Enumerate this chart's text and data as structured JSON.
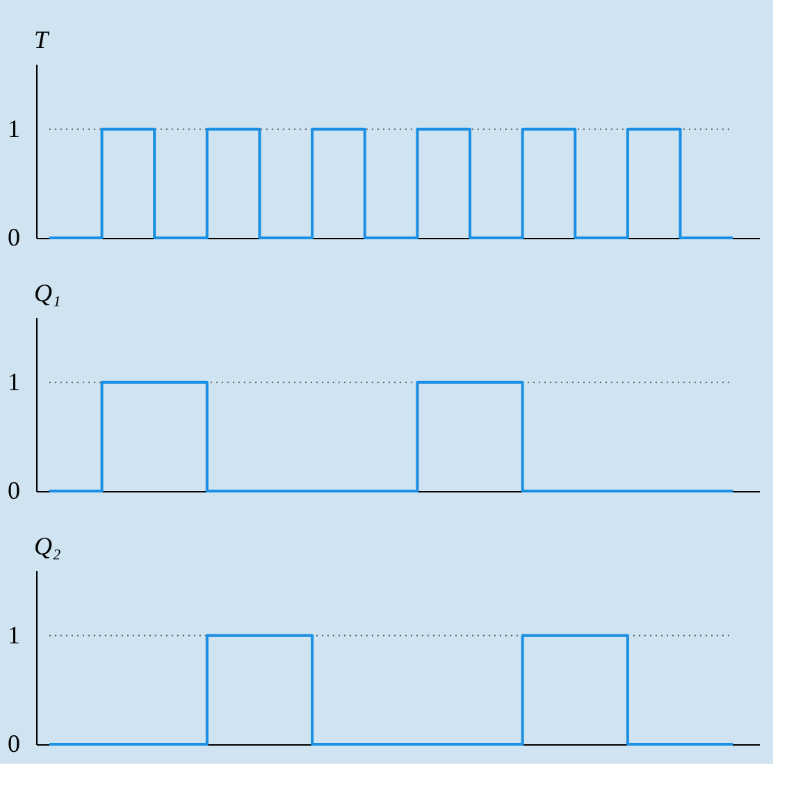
{
  "chart_data": [
    {
      "type": "step",
      "ylabel": "T",
      "categories": [
        null,
        null,
        null,
        null,
        null,
        null,
        null,
        null,
        null,
        null,
        null,
        null,
        null,
        null
      ],
      "tick_labels": "y",
      "ylim": [
        0,
        1.6
      ],
      "yticks": [
        0,
        1
      ],
      "series": [
        {
          "color": "#1a8fe3",
          "values": [
            0,
            1,
            0,
            1,
            0,
            1,
            0,
            1,
            0,
            1,
            0,
            1,
            0,
            0
          ]
        }
      ],
      "ref_lines": [
        {
          "axis": "y",
          "value": 1,
          "line_style": "dotted",
          "color": "#555555"
        }
      ]
    },
    {
      "type": "step",
      "ylabel": "Q₁",
      "categories": [
        null,
        null,
        null,
        null,
        null,
        null,
        null,
        null,
        null,
        null,
        null,
        null,
        null,
        null
      ],
      "tick_labels": "y",
      "ylim": [
        0,
        1.6
      ],
      "yticks": [
        0,
        1
      ],
      "series": [
        {
          "color": "#1a8fe3",
          "values": [
            0,
            1,
            1,
            0,
            0,
            0,
            0,
            1,
            1,
            0,
            0,
            0,
            0,
            0
          ]
        }
      ],
      "ref_lines": [
        {
          "axis": "y",
          "value": 1,
          "line_style": "dotted",
          "color": "#555555"
        }
      ]
    },
    {
      "type": "step",
      "ylabel": "Q₂",
      "categories": [
        null,
        null,
        null,
        null,
        null,
        null,
        null,
        null,
        null,
        null,
        null,
        null,
        null,
        null
      ],
      "tick_labels": "y",
      "ylim": [
        0,
        1.6
      ],
      "yticks": [
        0,
        1
      ],
      "series": [
        {
          "color": "#1a8fe3",
          "values": [
            0,
            0,
            0,
            1,
            1,
            0,
            0,
            0,
            0,
            1,
            1,
            0,
            0,
            0
          ]
        }
      ],
      "ref_lines": [
        {
          "axis": "y",
          "value": 1,
          "line_style": "dotted",
          "color": "#555555"
        }
      ]
    }
  ]
}
